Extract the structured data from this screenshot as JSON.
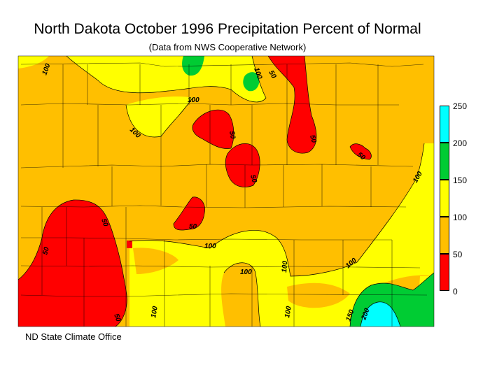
{
  "title": "North Dakota October 1996 Precipitation Percent of Normal",
  "subtitle": "(Data from NWS Cooperative Network)",
  "credit": "ND State Climate Office",
  "colors": {
    "band_0_50": "#ff0000",
    "band_50_100": "#ffbf00",
    "band_100_150": "#ffff00",
    "band_150_200": "#00cc33",
    "band_200_250": "#00ffff",
    "contour": "#000000"
  },
  "legend": {
    "ticks": [
      "250",
      "200",
      "150",
      "100",
      "50",
      "0"
    ],
    "bands": [
      {
        "range": "200-250",
        "color": "#00ffff"
      },
      {
        "range": "150-200",
        "color": "#00cc33"
      },
      {
        "range": "100-150",
        "color": "#ffff00"
      },
      {
        "range": "50-100",
        "color": "#ffbf00"
      },
      {
        "range": "0-50",
        "color": "#ff0000"
      }
    ]
  },
  "contour_labels": [
    "100",
    "100",
    "50",
    "100",
    "100",
    "50",
    "50",
    "50",
    "50",
    "100",
    "50",
    "50",
    "100",
    "100",
    "100",
    "100",
    "100",
    "100",
    "100",
    "150",
    "200",
    "50",
    "50"
  ]
}
